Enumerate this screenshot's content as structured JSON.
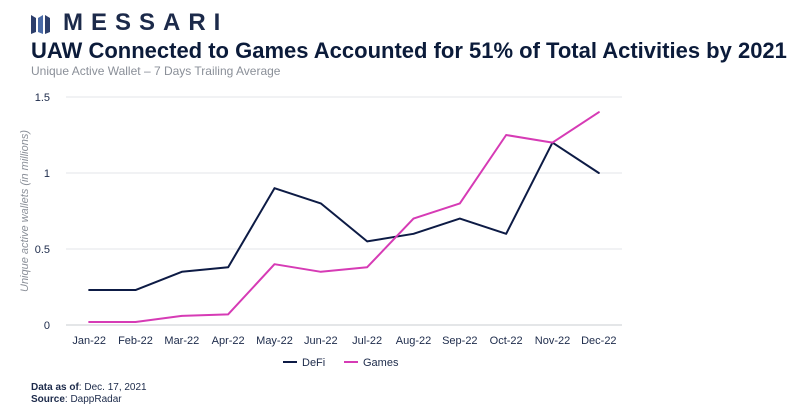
{
  "brand": {
    "name": "MESSARI",
    "color": "#1c2a4a"
  },
  "header": {
    "title": "UAW Connected to Games Accounted for 51% of Total Activities by 2021",
    "subtitle": "Unique Active Wallet – 7 Days Trailing Average"
  },
  "footer": {
    "data_label": "Data as of",
    "data_value": ": Dec. 17, 2021",
    "source_label": "Source",
    "source_value": ": DappRadar"
  },
  "chart_data": {
    "type": "line",
    "title": "UAW Connected to Games Accounted for 51% of Total Activities by 2021",
    "subtitle": "Unique Active Wallet – 7 Days Trailing Average",
    "xlabel": "",
    "ylabel": "Unique active wallets (in millions)",
    "categories": [
      "Jan-22",
      "Feb-22",
      "Mar-22",
      "Apr-22",
      "May-22",
      "Jun-22",
      "Jul-22",
      "Aug-22",
      "Sep-22",
      "Oct-22",
      "Nov-22",
      "Dec-22"
    ],
    "ylim": [
      0,
      1.5
    ],
    "yticks": [
      "0",
      "0.5",
      "1",
      "1.5"
    ],
    "grid": "horizontal",
    "legend_position": "bottom",
    "series": [
      {
        "name": "DeFi",
        "color": "#0d1b45",
        "values": [
          0.23,
          0.23,
          0.35,
          0.38,
          0.9,
          0.8,
          0.55,
          0.6,
          0.7,
          0.6,
          1.2,
          1.0
        ]
      },
      {
        "name": "Games",
        "color": "#d63bb5",
        "values": [
          0.02,
          0.02,
          0.06,
          0.07,
          0.4,
          0.35,
          0.38,
          0.7,
          0.8,
          1.25,
          1.2,
          1.4
        ]
      }
    ]
  }
}
